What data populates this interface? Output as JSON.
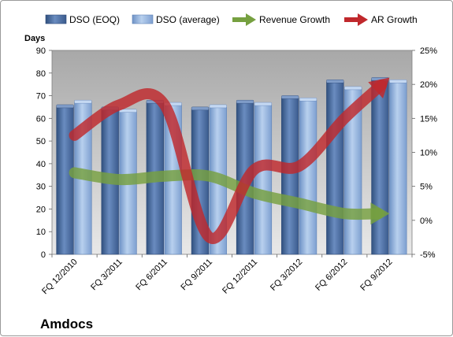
{
  "chart_data": {
    "type": "bar",
    "title": "Amdocs",
    "ylabel": "Days",
    "categories": [
      "FQ 12/2010",
      "FQ 3/2011",
      "FQ 6/2011",
      "FQ 9/2011",
      "FQ 12/2011",
      "FQ 3/2012",
      "FQ 6/2012",
      "FQ 9/2012"
    ],
    "ylim": [
      0,
      90
    ],
    "yticks": [
      "0",
      "10",
      "20",
      "30",
      "40",
      "50",
      "60",
      "70",
      "80",
      "90"
    ],
    "y2lim": [
      -5,
      25
    ],
    "y2ticks": [
      "-5%",
      "0%",
      "5%",
      "10%",
      "15%",
      "20%",
      "25%"
    ],
    "series": [
      {
        "name": "DSO (EOQ)",
        "type": "bar",
        "axis": "left",
        "color": "#4a6898",
        "values": [
          65,
          64,
          67,
          64,
          67,
          69,
          76,
          77
        ]
      },
      {
        "name": "DSO (average)",
        "type": "bar",
        "axis": "left",
        "color": "#8fb0dc",
        "values": [
          67,
          63,
          66,
          65,
          66,
          68,
          73,
          76
        ]
      },
      {
        "name": "Revenue Growth",
        "type": "line",
        "axis": "right",
        "color": "#76a040",
        "values": [
          7,
          6,
          6.5,
          6.5,
          4,
          2.5,
          1,
          1
        ]
      },
      {
        "name": "AR Growth",
        "type": "line",
        "axis": "right",
        "color": "#c0282c",
        "values": [
          12.5,
          17,
          17,
          -2.5,
          7.5,
          8,
          15,
          21
        ]
      }
    ],
    "grid": false,
    "legend": "top"
  }
}
